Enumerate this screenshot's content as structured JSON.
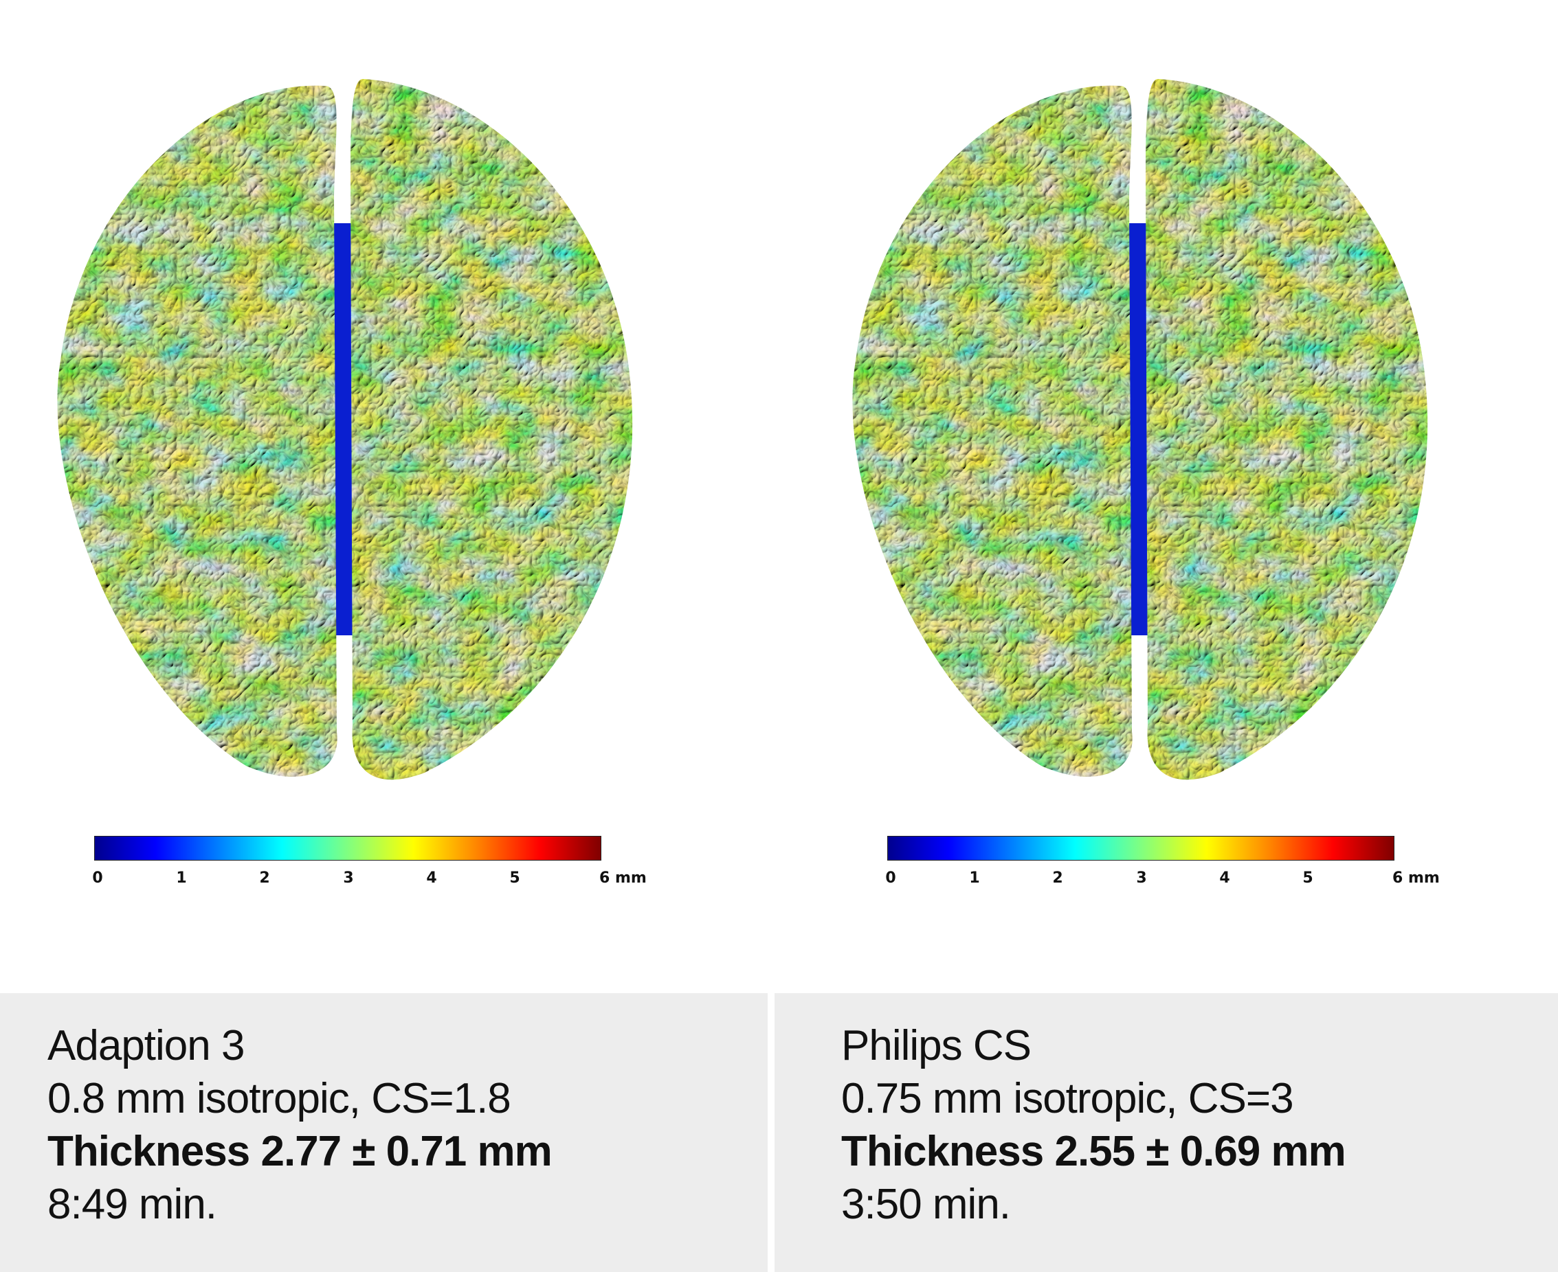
{
  "colors": {
    "panel_bg": "#ededed",
    "midline": "#0a1fd0"
  },
  "colorbar": {
    "type": "jet",
    "ticks": [
      "0",
      "1",
      "2",
      "3",
      "4",
      "5",
      "6 mm"
    ],
    "range": [
      0,
      6
    ],
    "unit": "mm"
  },
  "panels": [
    {
      "title": "Adaption 3",
      "resolution": "0.8 mm isotropic, CS=1.8",
      "thickness": "Thickness 2.77 ± 0.71 mm",
      "time": "8:49 min."
    },
    {
      "title": "Philips CS",
      "resolution": "0.75 mm isotropic, CS=3",
      "thickness": "Thickness 2.55 ± 0.69 mm",
      "time": "3:50 min."
    }
  ]
}
